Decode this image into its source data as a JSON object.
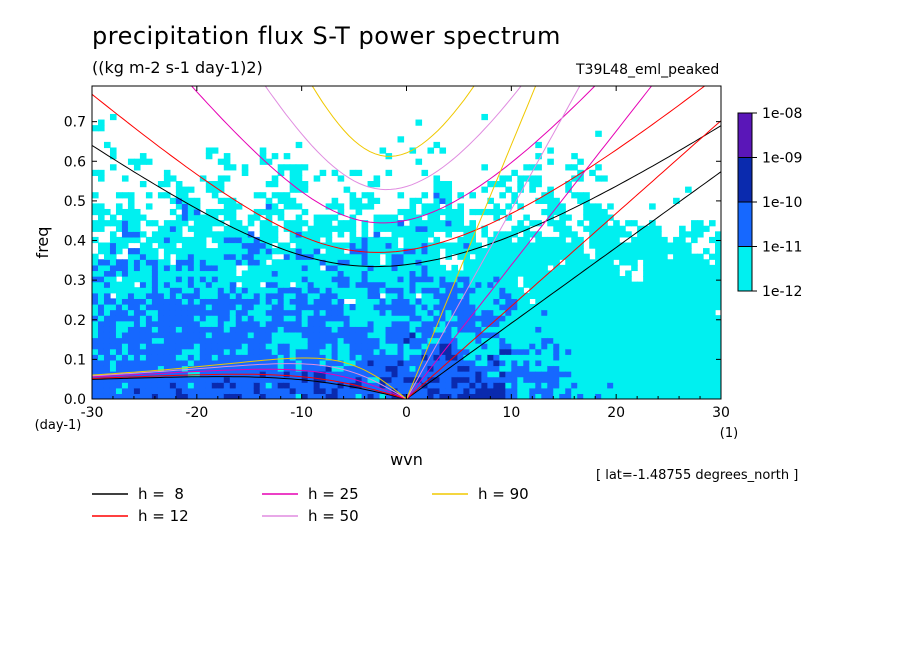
{
  "header": {
    "title": "precipitation flux S-T power spectrum",
    "units": "((kg m-2 s-1 day-1)2)",
    "run_name": "T39L48_eml_peaked",
    "lat_note": "[ lat=-1.48755 degrees_north ]"
  },
  "chart_data": {
    "type": "heatmap",
    "title": "precipitation flux S-T power spectrum",
    "subtitle": "((kg m-2 s-1 day-1)2)",
    "xlabel": "wvn",
    "ylabel": "freq",
    "x_unit": "(1)",
    "y_unit": "(day-1)",
    "xlim": [
      -30,
      30
    ],
    "ylim": [
      0,
      0.79
    ],
    "x_ticks": [
      -30,
      -20,
      -10,
      0,
      10,
      20,
      30
    ],
    "x_tick_labels": [
      "-30",
      "-20",
      "-10",
      "0",
      "10",
      "20",
      "30"
    ],
    "y_ticks": [
      0.0,
      0.1,
      0.2,
      0.3,
      0.4,
      0.5,
      0.6,
      0.7
    ],
    "y_tick_labels": [
      "0.0",
      "0.1",
      "0.2",
      "0.3",
      "0.4",
      "0.5",
      "0.6",
      "0.7"
    ],
    "colorbar": {
      "labels": [
        "1e-08",
        "1e-09",
        "1e-10",
        "1e-11",
        "1e-12"
      ],
      "colors": [
        "#5a16b8",
        "#0a2aae",
        "#1668ff",
        "#00f0f0"
      ],
      "background": "#ffffff"
    },
    "field_regions": [
      {
        "level": 1,
        "color": "#00f0f0",
        "description_x": [
          -30,
          30
        ],
        "description_y": [
          0.0,
          0.72
        ]
      },
      {
        "level": 2,
        "color": "#1668ff",
        "description_x": [
          -30,
          12
        ],
        "description_y": [
          0.0,
          0.38
        ]
      },
      {
        "level": 3,
        "color": "#0a2aae",
        "description_x": [
          -25,
          10
        ],
        "description_y": [
          0.0,
          0.11
        ]
      }
    ],
    "legend": [
      {
        "label": "h =  8",
        "color": "#000000"
      },
      {
        "label": "h = 12",
        "color": "#ff0000"
      },
      {
        "label": "h = 25",
        "color": "#e600b4"
      },
      {
        "label": "h = 50",
        "color": "#e08ce0"
      },
      {
        "label": "h = 90",
        "color": "#f0c800"
      }
    ],
    "series": [
      {
        "name": "h =  8",
        "equivalent_depth": 8,
        "color": "#000000"
      },
      {
        "name": "h = 12",
        "equivalent_depth": 12,
        "color": "#ff0000"
      },
      {
        "name": "h = 25",
        "equivalent_depth": 25,
        "color": "#e600b4"
      },
      {
        "name": "h = 50",
        "equivalent_depth": 50,
        "color": "#e08ce0"
      },
      {
        "name": "h = 90",
        "equivalent_depth": 90,
        "color": "#f0c800"
      }
    ]
  }
}
